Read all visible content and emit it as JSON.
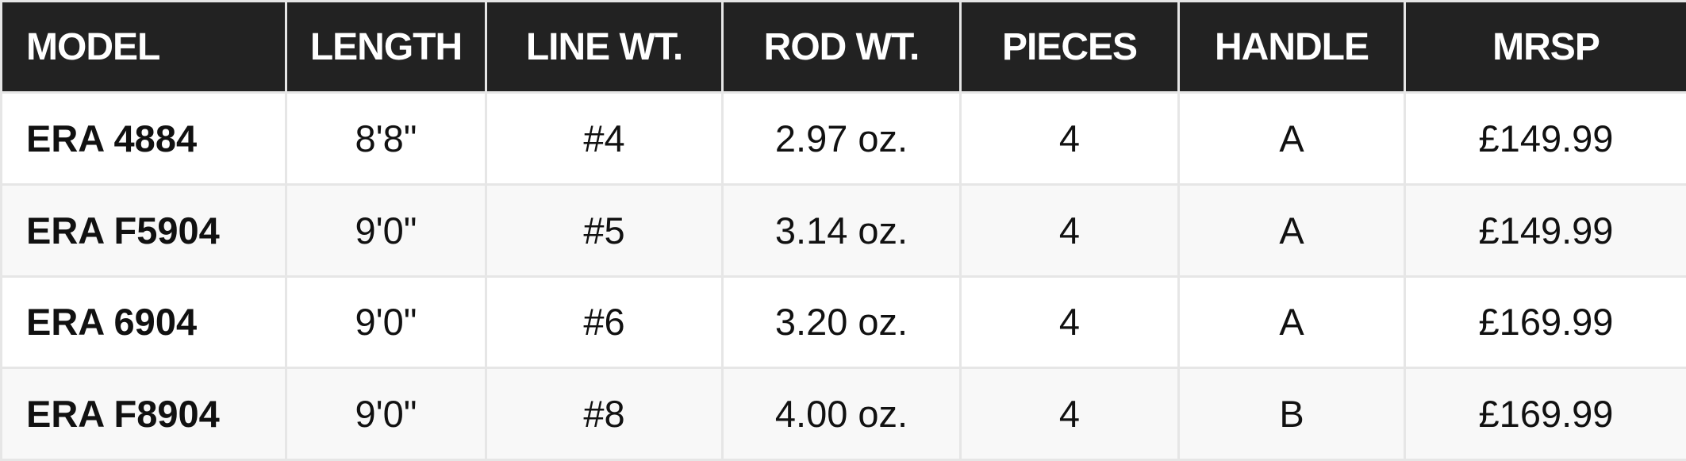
{
  "table": {
    "columns": [
      "MODEL",
      "LENGTH",
      "LINE WT.",
      "ROD WT.",
      "PIECES",
      "HANDLE",
      "MRSP"
    ],
    "rows": [
      [
        "ERA 4884",
        "8'8\"",
        "#4",
        "2.97 oz.",
        "4",
        "A",
        "£149.99"
      ],
      [
        "ERA F5904",
        "9'0\"",
        "#5",
        "3.14 oz.",
        "4",
        "A",
        "£149.99"
      ],
      [
        "ERA 6904",
        "9'0\"",
        "#6",
        "3.20 oz.",
        "4",
        "A",
        "£169.99"
      ],
      [
        "ERA F8904",
        "9'0\"",
        "#8",
        "4.00 oz.",
        "4",
        "B",
        "£169.99"
      ]
    ]
  }
}
